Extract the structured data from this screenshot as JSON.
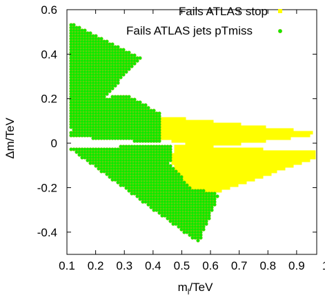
{
  "chart_data": {
    "type": "scatter",
    "title": "",
    "xlabel_main": "m",
    "xlabel_sub": "l",
    "xlabel_unit": "/TeV",
    "ylabel": "Δm/TeV",
    "xlim": [
      0.1,
      0.97
    ],
    "ylim": [
      -0.5,
      0.6
    ],
    "xticks": [
      "0.1",
      "0.2",
      "0.3",
      "0.4",
      "0.5",
      "0.6",
      "0.7",
      "0.8",
      "0.9",
      "1"
    ],
    "xtick_values": [
      0.1,
      0.2,
      0.3,
      0.4,
      0.5,
      0.6,
      0.7,
      0.8,
      0.9,
      1.0
    ],
    "yticks": [
      "0.6",
      "0.4",
      "0.2",
      "0",
      "-0.2",
      "-0.4"
    ],
    "ytick_values": [
      0.6,
      0.4,
      0.2,
      0.0,
      -0.2,
      -0.4
    ],
    "grid": false,
    "legend_position": "top-right",
    "series": [
      {
        "name": "Fails ATLAS stop",
        "color": "#ffff00",
        "marker": "square",
        "regions": [
          [
            [
              0.43,
              0.12
            ],
            [
              0.96,
              0.05
            ],
            [
              0.94,
              0.03
            ],
            [
              0.58,
              -0.02
            ],
            [
              0.43,
              0.02
            ]
          ],
          [
            [
              0.48,
              -0.01
            ],
            [
              0.99,
              -0.04
            ],
            [
              0.96,
              -0.07
            ],
            [
              0.63,
              -0.22
            ],
            [
              0.52,
              -0.21
            ],
            [
              0.46,
              -0.08
            ]
          ]
        ]
      },
      {
        "name": "Fails ATLAS jets pTmiss",
        "color": "#00ee00",
        "edge_color": "#66cc00",
        "marker": "circle",
        "regions": [
          [
            [
              0.105,
              0.55
            ],
            [
              0.36,
              0.38
            ],
            [
              0.12,
              0.06
            ],
            [
              0.105,
              0.06
            ]
          ],
          [
            [
              0.16,
              0.19
            ],
            [
              0.31,
              0.22
            ],
            [
              0.43,
              0.13
            ],
            [
              0.43,
              0.0
            ],
            [
              0.105,
              0.03
            ]
          ],
          [
            [
              0.105,
              -0.02
            ],
            [
              0.47,
              -0.01
            ],
            [
              0.46,
              -0.09
            ],
            [
              0.53,
              -0.2
            ],
            [
              0.63,
              -0.23
            ],
            [
              0.56,
              -0.45
            ]
          ]
        ]
      }
    ]
  }
}
